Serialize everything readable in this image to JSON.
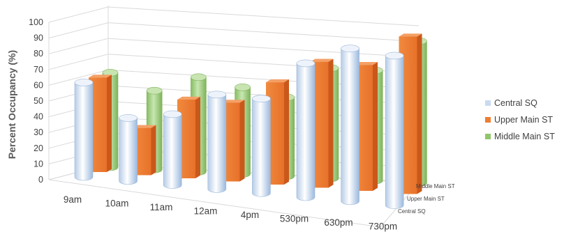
{
  "chart_data": {
    "type": "bar",
    "style": "3d-cylinder",
    "ylabel": "Percent Occupancy (%)",
    "xlabel": "",
    "title": "",
    "ylim": [
      0,
      100
    ],
    "yticks": [
      0,
      10,
      20,
      30,
      40,
      50,
      60,
      70,
      80,
      90,
      100
    ],
    "grid": true,
    "legend_position": "right",
    "categories": [
      "9am",
      "10am",
      "11am",
      "12am",
      "4pm",
      "530pm",
      "630pm",
      "730pm"
    ],
    "depth_labels": [
      "Middle Main ST",
      "Upper Main ST",
      "Central SQ"
    ],
    "series": [
      {
        "name": "Central SQ",
        "values": [
          60,
          40,
          45,
          60,
          60,
          85,
          97,
          95
        ],
        "color": "#c9daf0"
      },
      {
        "name": "Upper Main ST",
        "values": [
          60,
          30,
          50,
          50,
          65,
          80,
          80,
          100
        ],
        "color": "#ed7d31"
      },
      {
        "name": "Middle Main ST",
        "values": [
          60,
          50,
          60,
          55,
          50,
          70,
          70,
          90
        ],
        "color": "#8fc66a"
      }
    ]
  }
}
